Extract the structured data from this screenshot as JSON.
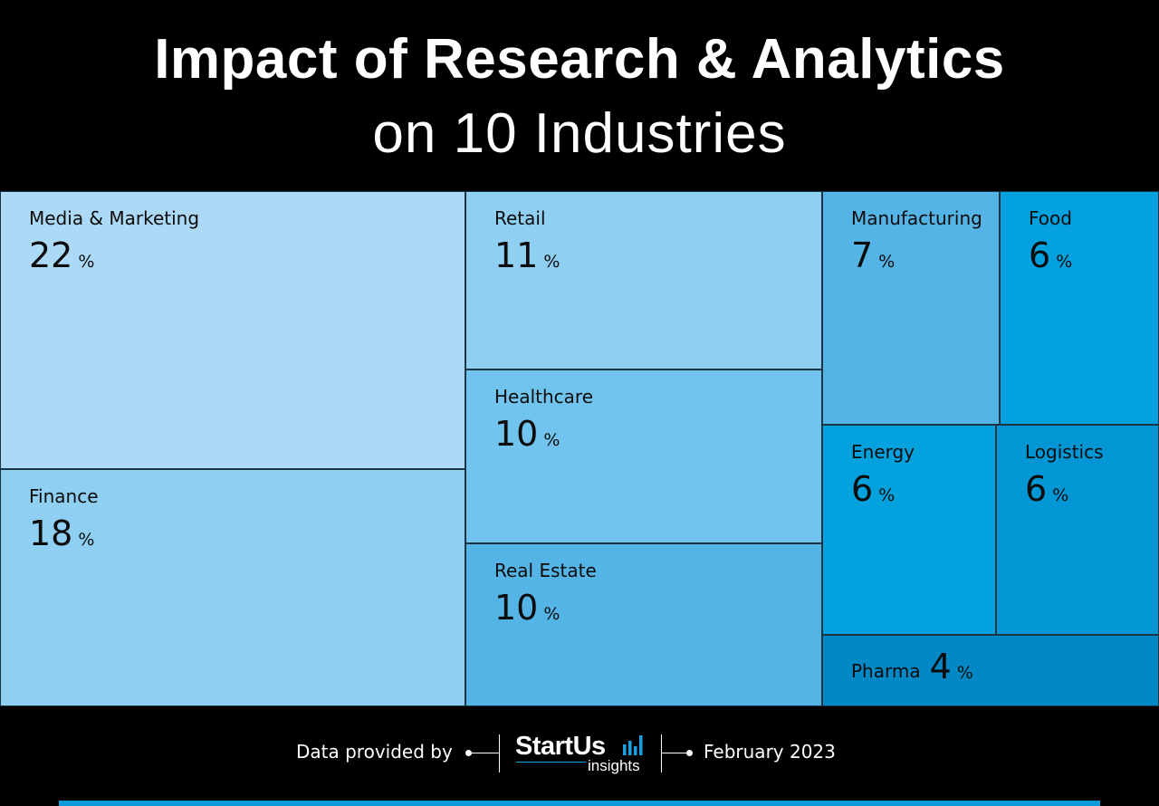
{
  "title_line1": "Impact of  Research & Analytics",
  "title_line2": "on 10 Industries",
  "chart_data": {
    "type": "treemap",
    "title": "Impact of  Research & Analytics on 10 Industries",
    "unit": "%",
    "items": [
      {
        "label": "Media & Marketing",
        "value": 22,
        "color": "#acd9f5"
      },
      {
        "label": "Finance",
        "value": 18,
        "color": "#8fd0f2"
      },
      {
        "label": "Retail",
        "value": 11,
        "color": "#8fd0f2"
      },
      {
        "label": "Healthcare",
        "value": 10,
        "color": "#70c4ee"
      },
      {
        "label": "Real Estate",
        "value": 10,
        "color": "#54b4e6"
      },
      {
        "label": "Manufacturing",
        "value": 7,
        "color": "#54b4e6"
      },
      {
        "label": "Food",
        "value": 6,
        "color": "#03a1dd"
      },
      {
        "label": "Energy",
        "value": 6,
        "color": "#03a1dd"
      },
      {
        "label": "Logistics",
        "value": 6,
        "color": "#0396d4"
      },
      {
        "label": "Pharma",
        "value": 4,
        "color": "#0288c5"
      }
    ]
  },
  "footer": {
    "data_provided_by": "Data provided by",
    "logo_main": "StartUs",
    "logo_sub": "insights",
    "date": "February 2023"
  },
  "colors": {
    "background": "#000000",
    "accent_bar": "#0a9ad9",
    "logo_accent": "#1aa0e0"
  }
}
